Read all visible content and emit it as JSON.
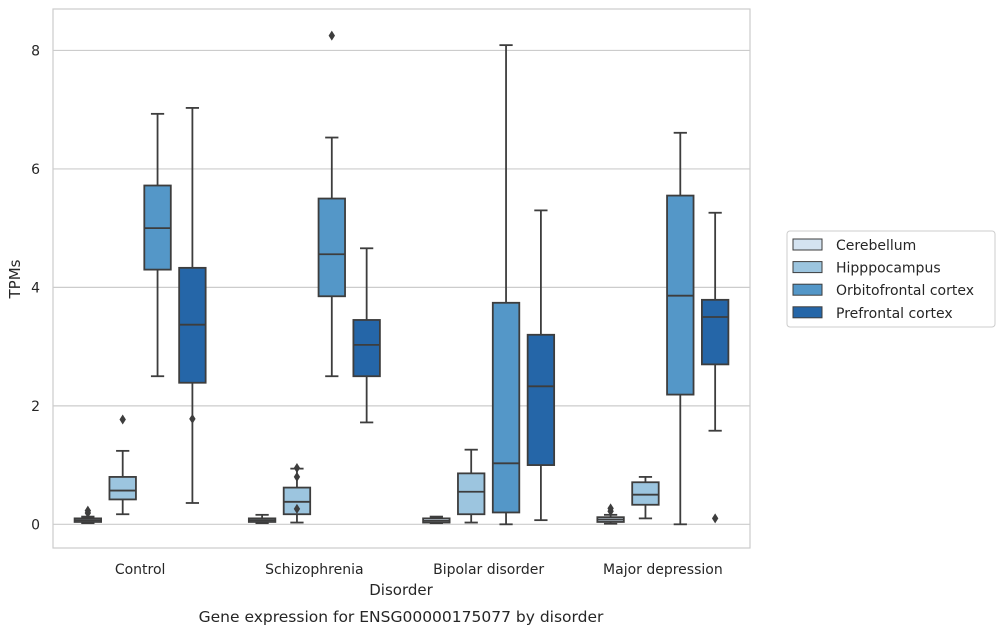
{
  "caption": "Gene expression for ENSG00000175077 by disorder",
  "chart_data": {
    "type": "box",
    "xlabel": "Disorder",
    "ylabel": "TPMs",
    "ylim": [
      -0.4,
      8.7
    ],
    "yticks": [
      0,
      2,
      4,
      6,
      8
    ],
    "grid": true,
    "legend_position": "outside-right",
    "categories": [
      "Control",
      "Schizophrenia",
      "Bipolar disorder",
      "Major depression"
    ],
    "series": [
      {
        "name": "Cerebellum",
        "color": "#d4e3f1",
        "boxes": [
          {
            "min": 0.02,
            "q1": 0.04,
            "median": 0.07,
            "q3": 0.1,
            "max": 0.13,
            "outliers": [
              0.19,
              0.23
            ]
          },
          {
            "min": 0.02,
            "q1": 0.04,
            "median": 0.07,
            "q3": 0.1,
            "max": 0.16,
            "outliers": []
          },
          {
            "min": 0.02,
            "q1": 0.03,
            "median": 0.06,
            "q3": 0.1,
            "max": 0.13,
            "outliers": []
          },
          {
            "min": 0.01,
            "q1": 0.04,
            "median": 0.08,
            "q3": 0.12,
            "max": 0.16,
            "outliers": [
              0.22,
              0.27
            ]
          }
        ]
      },
      {
        "name": "Hipppocampus",
        "color": "#9cc5df",
        "boxes": [
          {
            "min": 0.17,
            "q1": 0.42,
            "median": 0.57,
            "q3": 0.8,
            "max": 1.24,
            "outliers": [
              1.77
            ]
          },
          {
            "min": 0.03,
            "q1": 0.17,
            "median": 0.38,
            "q3": 0.62,
            "max": 0.94,
            "outliers": [
              0.26,
              0.8,
              0.95
            ]
          },
          {
            "min": 0.03,
            "q1": 0.17,
            "median": 0.55,
            "q3": 0.86,
            "max": 1.26,
            "outliers": []
          },
          {
            "min": 0.1,
            "q1": 0.33,
            "median": 0.5,
            "q3": 0.71,
            "max": 0.8,
            "outliers": []
          }
        ]
      },
      {
        "name": "Orbitofrontal cortex",
        "color": "#5497c8",
        "boxes": [
          {
            "min": 2.5,
            "q1": 4.3,
            "median": 5.0,
            "q3": 5.72,
            "max": 6.93,
            "outliers": []
          },
          {
            "min": 2.5,
            "q1": 3.85,
            "median": 4.56,
            "q3": 5.5,
            "max": 6.53,
            "outliers": [
              8.25
            ]
          },
          {
            "min": 0.0,
            "q1": 0.2,
            "median": 1.03,
            "q3": 3.74,
            "max": 8.09,
            "outliers": []
          },
          {
            "min": 0.0,
            "q1": 2.19,
            "median": 3.86,
            "q3": 5.55,
            "max": 6.61,
            "outliers": []
          }
        ]
      },
      {
        "name": "Prefrontal cortex",
        "color": "#2566a8",
        "boxes": [
          {
            "min": 0.36,
            "q1": 2.39,
            "median": 3.37,
            "q3": 4.33,
            "max": 7.03,
            "outliers": [
              1.78
            ]
          },
          {
            "min": 1.72,
            "q1": 2.5,
            "median": 3.03,
            "q3": 3.45,
            "max": 4.66,
            "outliers": []
          },
          {
            "min": 0.07,
            "q1": 1.0,
            "median": 2.33,
            "q3": 3.2,
            "max": 5.3,
            "outliers": []
          },
          {
            "min": 1.58,
            "q1": 2.7,
            "median": 3.5,
            "q3": 3.79,
            "max": 5.26,
            "outliers": [
              0.1
            ]
          }
        ]
      }
    ]
  }
}
